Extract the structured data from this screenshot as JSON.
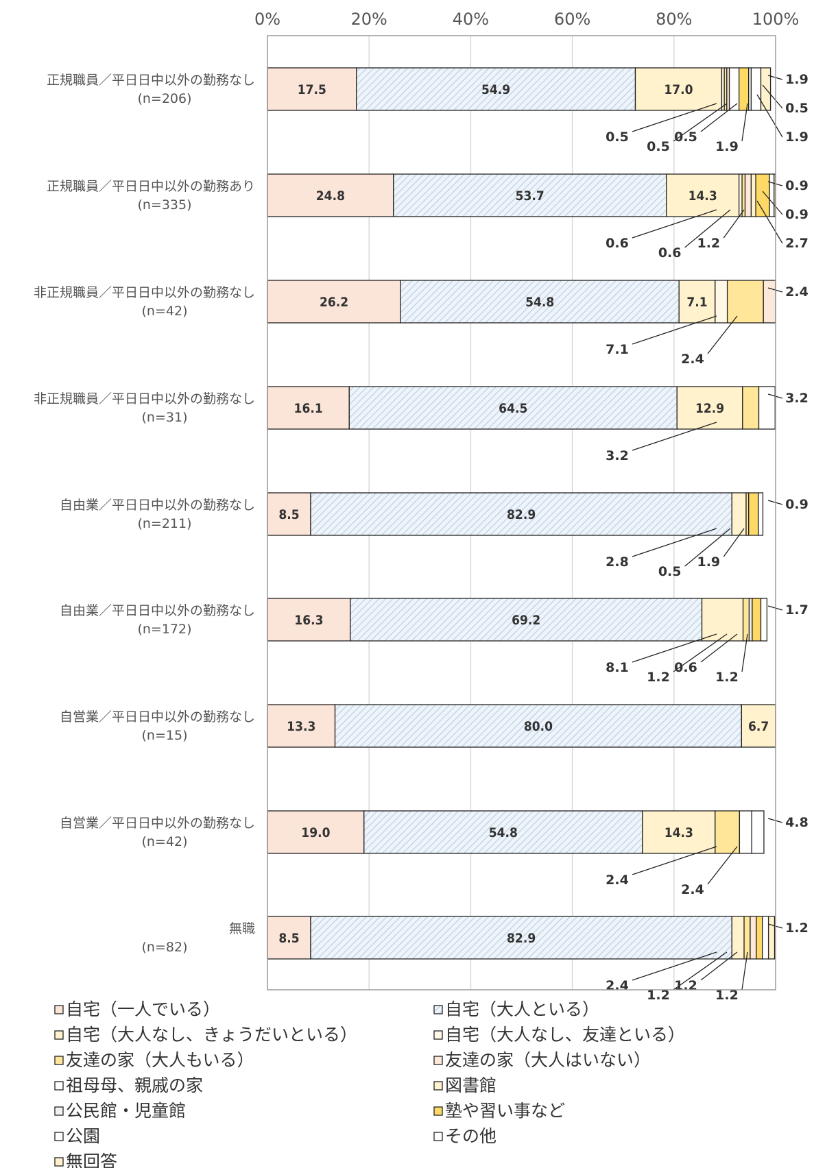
{
  "chart_data": {
    "type": "bar",
    "orientation": "horizontal",
    "stacked": true,
    "percent": true,
    "xlim": [
      0,
      100
    ],
    "x_ticks": [
      "0%",
      "20%",
      "40%",
      "60%",
      "80%",
      "100%"
    ],
    "grid": true,
    "legend_position": "bottom",
    "categories": [
      [
        "正規職員／平日日中以外の勤務なし",
        "(n=206)"
      ],
      [
        "正規職員／平日日中以外の勤務あり",
        "(n=335)"
      ],
      [
        "非正規職員／平日日中以外の勤務なし",
        "(n=42)"
      ],
      [
        "非正規職員／平日日中以外の勤務なし",
        "(n=31)"
      ],
      [
        "自由業／平日日中以外の勤務なし",
        "(n=211)"
      ],
      [
        "自由業／平日日中以外の勤務なし",
        "(n=172)"
      ],
      [
        "自営業／平日日中以外の勤務なし",
        "(n=15)"
      ],
      [
        "自営業／平日日中以外の勤務なし",
        "(n=42)"
      ],
      [
        "無職",
        "(n=82)"
      ]
    ],
    "series": [
      {
        "name": "自宅（一人でいる）",
        "color": "#fbe4d8",
        "values": [
          17.5,
          24.8,
          26.2,
          16.1,
          8.5,
          16.3,
          13.3,
          19.0,
          8.5
        ]
      },
      {
        "name": "自宅（大人といる）",
        "color": "#dce9f3",
        "pattern": "hatch",
        "values": [
          54.9,
          53.7,
          54.8,
          64.5,
          82.9,
          69.2,
          80.0,
          54.8,
          82.9
        ]
      },
      {
        "name": "自宅（大人なし、きょうだいといる）",
        "color": "#fff2cc",
        "values": [
          17.0,
          14.3,
          7.1,
          12.9,
          2.8,
          8.1,
          6.7,
          14.3,
          2.4
        ]
      },
      {
        "name": "自宅（大人なし、友達といる）",
        "color": "#fff8e6",
        "values": [
          0.5,
          0.6,
          2.4,
          0,
          0,
          0,
          0,
          0,
          0
        ]
      },
      {
        "name": "友達の家（大人もいる）",
        "color": "#ffe699",
        "values": [
          0.5,
          0.6,
          7.1,
          3.2,
          0.5,
          1.2,
          0,
          4.8,
          1.2
        ]
      },
      {
        "name": "友達の家（大人はいない）",
        "color": "#fde9d9",
        "values": [
          0.5,
          1.2,
          2.4,
          0,
          0,
          0,
          0,
          0,
          1.2
        ]
      },
      {
        "name": "祖母母、親戚の家",
        "color": "#ffffff",
        "values": [
          1.9,
          0,
          0,
          0,
          0,
          0,
          0,
          2.4,
          0
        ]
      },
      {
        "name": "図書館",
        "color": "#fff2cc",
        "values": [
          0,
          0.9,
          0,
          0,
          0,
          0,
          0,
          0,
          0
        ]
      },
      {
        "name": "公民館・児童館",
        "color": "#f2f2f2",
        "values": [
          0,
          0,
          0,
          0,
          0,
          0.6,
          0,
          0,
          0
        ]
      },
      {
        "name": "塾や習い事など",
        "color": "#ffd966",
        "values": [
          1.9,
          2.7,
          0,
          0,
          1.9,
          1.7,
          0,
          0,
          1.2
        ]
      },
      {
        "name": "公園",
        "color": "#ffffff",
        "values": [
          0.5,
          0.9,
          0,
          0,
          0,
          1.2,
          0,
          0,
          1.2
        ]
      },
      {
        "name": "その他",
        "color": "#ffffff",
        "values": [
          1.9,
          0,
          0,
          3.2,
          0.9,
          0,
          0,
          2.4,
          0
        ]
      },
      {
        "name": "無回答",
        "color": "#fff2cc",
        "values": [
          1.9,
          0.9,
          0,
          0,
          0,
          0,
          0,
          0,
          1.2
        ]
      }
    ],
    "inside_labels": [
      [
        "17.5",
        "54.9",
        "17.0"
      ],
      [
        "24.8",
        "53.7",
        "14.3"
      ],
      [
        "26.2",
        "54.8",
        "7.1"
      ],
      [
        "16.1",
        "64.5",
        "12.9"
      ],
      [
        "8.5",
        "82.9"
      ],
      [
        "16.3",
        "69.2"
      ],
      [
        "13.3",
        "80.0",
        "6.7"
      ],
      [
        "19.0",
        "54.8",
        "14.3"
      ],
      [
        "8.5",
        "82.9"
      ]
    ],
    "callout_labels": [
      [
        "0.5",
        "0.5",
        "0.5",
        "1.9",
        "1.9",
        "0.5",
        "1.9"
      ],
      [
        "0.6",
        "0.6",
        "1.2",
        "0.9",
        "0.9",
        "2.7"
      ],
      [
        "7.1",
        "2.4",
        "2.4"
      ],
      [
        "3.2",
        "3.2"
      ],
      [
        "2.8",
        "0.5",
        "1.9",
        "0.9"
      ],
      [
        "8.1",
        "1.2",
        "0.6",
        "1.2",
        "1.7"
      ],
      [],
      [
        "2.4",
        "2.4",
        "4.8"
      ],
      [
        "2.4",
        "1.2",
        "1.2",
        "1.2",
        "1.2"
      ]
    ]
  }
}
